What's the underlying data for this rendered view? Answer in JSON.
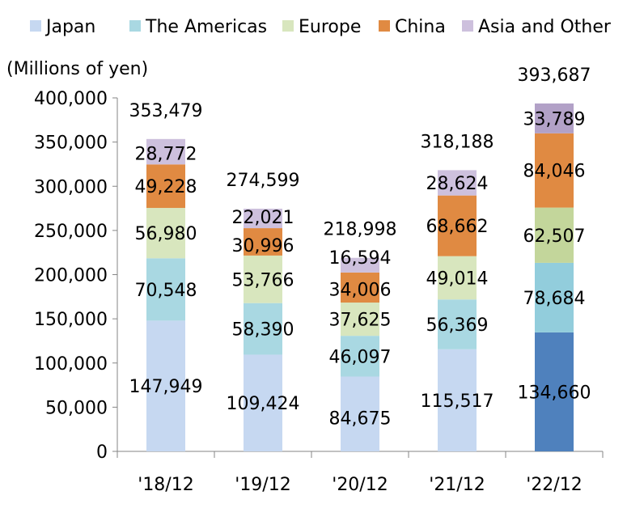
{
  "chart_data": {
    "type": "bar",
    "stacked": true,
    "unit_label": "(Millions of yen)",
    "categories": [
      "'18/12",
      "'19/12",
      "'20/12",
      "'21/12",
      "'22/12"
    ],
    "series": [
      {
        "name": "Japan",
        "color": "#c6d8f1",
        "values": [
          147949,
          109424,
          84675,
          115517,
          134660
        ],
        "labels": [
          "147,949",
          "109,424",
          "84,675",
          "115,517",
          "134,660"
        ]
      },
      {
        "name": "The Americas",
        "color": "#a9d8e2",
        "values": [
          70548,
          58390,
          46097,
          56369,
          78684
        ],
        "labels": [
          "70,548",
          "58,390",
          "46,097",
          "56,369",
          "78,684"
        ]
      },
      {
        "name": "Europe",
        "color": "#d8e6be",
        "values": [
          56980,
          53766,
          37625,
          49014,
          62507
        ],
        "labels": [
          "56,980",
          "53,766",
          "37,625",
          "49,014",
          "62,507"
        ]
      },
      {
        "name": "China",
        "color": "#e08a42",
        "values": [
          49228,
          30996,
          34006,
          68662,
          84046
        ],
        "labels": [
          "49,228",
          "30,996",
          "34,006",
          "68,662",
          "84,046"
        ]
      },
      {
        "name": "Asia and Other",
        "color": "#cdc0dd",
        "values": [
          28772,
          22021,
          16594,
          28624,
          33789
        ],
        "labels": [
          "28,772",
          "22,021",
          "16,594",
          "28,624",
          "33,789"
        ]
      }
    ],
    "highlight": {
      "category_index": 4,
      "colors": [
        "#4f81bd",
        "#92cddc",
        "#c3d69b",
        "#e08a42",
        "#b2a1c7"
      ]
    },
    "totals": [
      353479,
      274599,
      218998,
      318188,
      393687
    ],
    "total_labels": [
      "353,479",
      "274,599",
      "218,998",
      "318,188",
      "393,687"
    ],
    "ylim": [
      0,
      400000
    ],
    "yticks": [
      0,
      50000,
      100000,
      150000,
      200000,
      250000,
      300000,
      350000,
      400000
    ],
    "ytick_labels": [
      "0",
      "50,000",
      "100,000",
      "150,000",
      "200,000",
      "250,000",
      "300,000",
      "350,000",
      "400,000"
    ],
    "legend_position": "top",
    "grid": false
  }
}
